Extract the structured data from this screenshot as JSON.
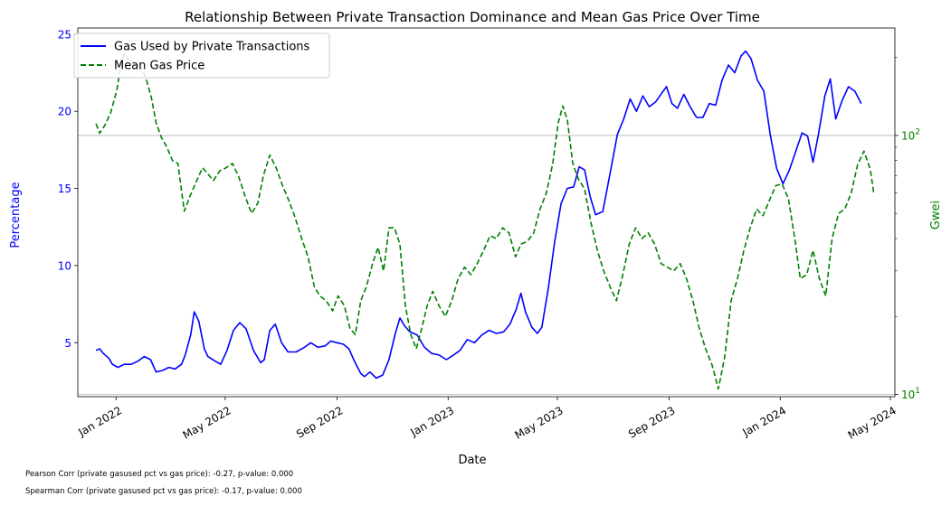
{
  "chart_data": {
    "type": "line",
    "title": "Relationship Between Private Transaction Dominance and Mean Gas Price Over Time",
    "xlabel": "Date",
    "ylabel": "Percentage",
    "ylabel_right": "Gwei",
    "x_ticks": [
      "Jan 2022",
      "May 2022",
      "Sep 2022",
      "Jan 2023",
      "May 2023",
      "Sep 2023",
      "Jan 2024",
      "May 2024"
    ],
    "y_ticks_left": [
      "5",
      "10",
      "15",
      "20",
      "25"
    ],
    "y_ticks_right": [
      "10",
      "100"
    ],
    "y_right_scale": "log",
    "xlim": [
      "2021-11-20",
      "2024-05-06"
    ],
    "ylim_left": [
      1.5,
      25.4
    ],
    "ylim_right": [
      9.8,
      260
    ],
    "grid": "right-axis horizontal lines",
    "legend": "top-left",
    "colors": {
      "private": "#0000ff",
      "gas": "#008000",
      "right_axis": "#008000",
      "left_axis": "#0000ff"
    },
    "series": [
      {
        "name": "Gas Used by Private Transactions",
        "axis": "left",
        "style": "solid",
        "points": [
          [
            "2021-12-10",
            4.5
          ],
          [
            "2021-12-14",
            4.6
          ],
          [
            "2021-12-18",
            4.3
          ],
          [
            "2021-12-24",
            4.0
          ],
          [
            "2021-12-28",
            3.6
          ],
          [
            "2022-01-03",
            3.4
          ],
          [
            "2022-01-10",
            3.6
          ],
          [
            "2022-01-18",
            3.6
          ],
          [
            "2022-01-25",
            3.8
          ],
          [
            "2022-02-01",
            4.1
          ],
          [
            "2022-02-08",
            3.9
          ],
          [
            "2022-02-14",
            3.1
          ],
          [
            "2022-02-21",
            3.2
          ],
          [
            "2022-02-28",
            3.4
          ],
          [
            "2022-03-07",
            3.3
          ],
          [
            "2022-03-14",
            3.6
          ],
          [
            "2022-03-18",
            4.2
          ],
          [
            "2022-03-24",
            5.5
          ],
          [
            "2022-03-28",
            7.0
          ],
          [
            "2022-04-02",
            6.4
          ],
          [
            "2022-04-08",
            4.6
          ],
          [
            "2022-04-12",
            4.1
          ],
          [
            "2022-04-20",
            3.8
          ],
          [
            "2022-04-26",
            3.6
          ],
          [
            "2022-05-03",
            4.5
          ],
          [
            "2022-05-10",
            5.8
          ],
          [
            "2022-05-17",
            6.3
          ],
          [
            "2022-05-24",
            5.9
          ],
          [
            "2022-06-01",
            4.5
          ],
          [
            "2022-06-09",
            3.7
          ],
          [
            "2022-06-13",
            3.9
          ],
          [
            "2022-06-19",
            5.8
          ],
          [
            "2022-06-25",
            6.2
          ],
          [
            "2022-07-02",
            5.0
          ],
          [
            "2022-07-09",
            4.4
          ],
          [
            "2022-07-18",
            4.4
          ],
          [
            "2022-07-27",
            4.7
          ],
          [
            "2022-08-03",
            5.0
          ],
          [
            "2022-08-11",
            4.7
          ],
          [
            "2022-08-19",
            4.8
          ],
          [
            "2022-08-25",
            5.1
          ],
          [
            "2022-09-01",
            5.0
          ],
          [
            "2022-09-08",
            4.9
          ],
          [
            "2022-09-14",
            4.6
          ],
          [
            "2022-09-20",
            3.8
          ],
          [
            "2022-09-27",
            3.0
          ],
          [
            "2022-10-01",
            2.8
          ],
          [
            "2022-10-07",
            3.1
          ],
          [
            "2022-10-14",
            2.7
          ],
          [
            "2022-10-21",
            2.9
          ],
          [
            "2022-10-28",
            3.9
          ],
          [
            "2022-11-04",
            5.6
          ],
          [
            "2022-11-09",
            6.6
          ],
          [
            "2022-11-14",
            6.1
          ],
          [
            "2022-11-20",
            5.7
          ],
          [
            "2022-11-28",
            5.5
          ],
          [
            "2022-12-06",
            4.7
          ],
          [
            "2022-12-14",
            4.3
          ],
          [
            "2022-12-22",
            4.2
          ],
          [
            "2022-12-30",
            3.9
          ],
          [
            "2023-01-07",
            4.2
          ],
          [
            "2023-01-14",
            4.5
          ],
          [
            "2023-01-22",
            5.2
          ],
          [
            "2023-01-30",
            5.0
          ],
          [
            "2023-02-07",
            5.5
          ],
          [
            "2023-02-15",
            5.8
          ],
          [
            "2023-02-23",
            5.6
          ],
          [
            "2023-03-03",
            5.7
          ],
          [
            "2023-03-10",
            6.2
          ],
          [
            "2023-03-17",
            7.2
          ],
          [
            "2023-03-22",
            8.2
          ],
          [
            "2023-03-27",
            7.0
          ],
          [
            "2023-04-03",
            6.0
          ],
          [
            "2023-04-09",
            5.6
          ],
          [
            "2023-04-14",
            6.0
          ],
          [
            "2023-04-21",
            8.5
          ],
          [
            "2023-04-28",
            11.5
          ],
          [
            "2023-05-05",
            14.0
          ],
          [
            "2023-05-12",
            15.0
          ],
          [
            "2023-05-19",
            15.1
          ],
          [
            "2023-05-25",
            16.4
          ],
          [
            "2023-05-31",
            16.2
          ],
          [
            "2023-06-06",
            14.5
          ],
          [
            "2023-06-12",
            13.3
          ],
          [
            "2023-06-20",
            13.5
          ],
          [
            "2023-06-28",
            16.0
          ],
          [
            "2023-07-06",
            18.5
          ],
          [
            "2023-07-13",
            19.5
          ],
          [
            "2023-07-20",
            20.8
          ],
          [
            "2023-07-27",
            20.0
          ],
          [
            "2023-08-03",
            21.0
          ],
          [
            "2023-08-10",
            20.3
          ],
          [
            "2023-08-17",
            20.6
          ],
          [
            "2023-08-24",
            21.2
          ],
          [
            "2023-08-29",
            21.6
          ],
          [
            "2023-09-04",
            20.5
          ],
          [
            "2023-09-10",
            20.2
          ],
          [
            "2023-09-17",
            21.1
          ],
          [
            "2023-09-24",
            20.3
          ],
          [
            "2023-10-01",
            19.6
          ],
          [
            "2023-10-08",
            19.6
          ],
          [
            "2023-10-15",
            20.5
          ],
          [
            "2023-10-22",
            20.4
          ],
          [
            "2023-10-29",
            22.0
          ],
          [
            "2023-11-05",
            23.0
          ],
          [
            "2023-11-12",
            22.5
          ],
          [
            "2023-11-19",
            23.6
          ],
          [
            "2023-11-24",
            23.9
          ],
          [
            "2023-11-30",
            23.4
          ],
          [
            "2023-12-07",
            22.0
          ],
          [
            "2023-12-14",
            21.3
          ],
          [
            "2023-12-21",
            18.5
          ],
          [
            "2023-12-28",
            16.3
          ],
          [
            "2024-01-04",
            15.3
          ],
          [
            "2024-01-11",
            16.2
          ],
          [
            "2024-01-18",
            17.4
          ],
          [
            "2024-01-25",
            18.6
          ],
          [
            "2024-01-31",
            18.4
          ],
          [
            "2024-02-06",
            16.7
          ],
          [
            "2024-02-12",
            18.5
          ],
          [
            "2024-02-19",
            21.0
          ],
          [
            "2024-02-25",
            22.1
          ],
          [
            "2024-03-02",
            19.5
          ],
          [
            "2024-03-09",
            20.7
          ],
          [
            "2024-03-16",
            21.6
          ],
          [
            "2024-03-23",
            21.3
          ],
          [
            "2024-03-30",
            20.5
          ]
        ]
      },
      {
        "name": "Mean Gas Price",
        "axis": "right",
        "style": "dashed",
        "points": [
          [
            "2021-12-10",
            111
          ],
          [
            "2021-12-14",
            102
          ],
          [
            "2021-12-20",
            110
          ],
          [
            "2021-12-26",
            122
          ],
          [
            "2022-01-02",
            150
          ],
          [
            "2022-01-06",
            185
          ],
          [
            "2022-01-10",
            207
          ],
          [
            "2022-01-16",
            194
          ],
          [
            "2022-01-22",
            189
          ],
          [
            "2022-01-28",
            185
          ],
          [
            "2022-02-03",
            166
          ],
          [
            "2022-02-09",
            139
          ],
          [
            "2022-02-14",
            112
          ],
          [
            "2022-02-20",
            98
          ],
          [
            "2022-02-26",
            90
          ],
          [
            "2022-03-04",
            80
          ],
          [
            "2022-03-10",
            78
          ],
          [
            "2022-03-17",
            51
          ],
          [
            "2022-03-23",
            58
          ],
          [
            "2022-03-30",
            66
          ],
          [
            "2022-04-06",
            75
          ],
          [
            "2022-04-12",
            71
          ],
          [
            "2022-04-18",
            67
          ],
          [
            "2022-04-25",
            73
          ],
          [
            "2022-05-02",
            75
          ],
          [
            "2022-05-09",
            78
          ],
          [
            "2022-05-16",
            69
          ],
          [
            "2022-05-23",
            58
          ],
          [
            "2022-05-30",
            50
          ],
          [
            "2022-06-06",
            55
          ],
          [
            "2022-06-12",
            70
          ],
          [
            "2022-06-19",
            84
          ],
          [
            "2022-06-26",
            75
          ],
          [
            "2022-07-03",
            64
          ],
          [
            "2022-07-10",
            56
          ],
          [
            "2022-07-17",
            48
          ],
          [
            "2022-07-24",
            40
          ],
          [
            "2022-07-31",
            34
          ],
          [
            "2022-08-07",
            26
          ],
          [
            "2022-08-13",
            24
          ],
          [
            "2022-08-20",
            23
          ],
          [
            "2022-08-27",
            21
          ],
          [
            "2022-09-02",
            24
          ],
          [
            "2022-09-09",
            22
          ],
          [
            "2022-09-15",
            18
          ],
          [
            "2022-09-21",
            17
          ],
          [
            "2022-09-27",
            23
          ],
          [
            "2022-10-03",
            26
          ],
          [
            "2022-10-10",
            32
          ],
          [
            "2022-10-16",
            37
          ],
          [
            "2022-10-22",
            30
          ],
          [
            "2022-10-28",
            44
          ],
          [
            "2022-11-03",
            44
          ],
          [
            "2022-11-09",
            38
          ],
          [
            "2022-11-15",
            22
          ],
          [
            "2022-11-21",
            17
          ],
          [
            "2022-11-27",
            15
          ],
          [
            "2022-12-03",
            18
          ],
          [
            "2022-12-09",
            22
          ],
          [
            "2022-12-15",
            25
          ],
          [
            "2022-12-22",
            22
          ],
          [
            "2022-12-29",
            20
          ],
          [
            "2023-01-05",
            23
          ],
          [
            "2023-01-12",
            28
          ],
          [
            "2023-01-19",
            31
          ],
          [
            "2023-01-26",
            29
          ],
          [
            "2023-02-02",
            32
          ],
          [
            "2023-02-09",
            36
          ],
          [
            "2023-02-16",
            41
          ],
          [
            "2023-02-23",
            40
          ],
          [
            "2023-03-02",
            44
          ],
          [
            "2023-03-09",
            42
          ],
          [
            "2023-03-16",
            34
          ],
          [
            "2023-03-22",
            38
          ],
          [
            "2023-03-29",
            39
          ],
          [
            "2023-04-05",
            42
          ],
          [
            "2023-04-12",
            52
          ],
          [
            "2023-04-19",
            60
          ],
          [
            "2023-04-26",
            78
          ],
          [
            "2023-05-02",
            112
          ],
          [
            "2023-05-07",
            130
          ],
          [
            "2023-05-12",
            115
          ],
          [
            "2023-05-18",
            78
          ],
          [
            "2023-05-24",
            68
          ],
          [
            "2023-05-31",
            62
          ],
          [
            "2023-06-07",
            46
          ],
          [
            "2023-06-14",
            36
          ],
          [
            "2023-06-21",
            30
          ],
          [
            "2023-06-28",
            26
          ],
          [
            "2023-07-05",
            23
          ],
          [
            "2023-07-12",
            29
          ],
          [
            "2023-07-19",
            38
          ],
          [
            "2023-07-26",
            44
          ],
          [
            "2023-08-02",
            40
          ],
          [
            "2023-08-09",
            42
          ],
          [
            "2023-08-16",
            38
          ],
          [
            "2023-08-23",
            32
          ],
          [
            "2023-08-30",
            31
          ],
          [
            "2023-09-06",
            30
          ],
          [
            "2023-09-13",
            32
          ],
          [
            "2023-09-20",
            28
          ],
          [
            "2023-09-27",
            23
          ],
          [
            "2023-10-04",
            18
          ],
          [
            "2023-10-11",
            15
          ],
          [
            "2023-10-18",
            13
          ],
          [
            "2023-10-25",
            10.5
          ],
          [
            "2023-11-01",
            14
          ],
          [
            "2023-11-08",
            23
          ],
          [
            "2023-11-15",
            28
          ],
          [
            "2023-11-22",
            36
          ],
          [
            "2023-11-29",
            44
          ],
          [
            "2023-12-06",
            52
          ],
          [
            "2023-12-13",
            49
          ],
          [
            "2023-12-20",
            56
          ],
          [
            "2023-12-27",
            64
          ],
          [
            "2024-01-03",
            65
          ],
          [
            "2024-01-10",
            57
          ],
          [
            "2024-01-17",
            40
          ],
          [
            "2024-01-23",
            28
          ],
          [
            "2024-01-30",
            29
          ],
          [
            "2024-02-06",
            36
          ],
          [
            "2024-02-13",
            28
          ],
          [
            "2024-02-20",
            24
          ],
          [
            "2024-02-27",
            40
          ],
          [
            "2024-03-05",
            50
          ],
          [
            "2024-03-12",
            52
          ],
          [
            "2024-03-19",
            60
          ],
          [
            "2024-03-26",
            77
          ],
          [
            "2024-04-02",
            87
          ],
          [
            "2024-04-09",
            74
          ],
          [
            "2024-04-13",
            59
          ]
        ]
      }
    ],
    "annotations": [
      "Pearson Corr (private gasused pct vs gas price): -0.27, p-value: 0.000",
      "Spearman Corr (private gasused pct vs gas price): -0.17, p-value: 0.000"
    ]
  }
}
